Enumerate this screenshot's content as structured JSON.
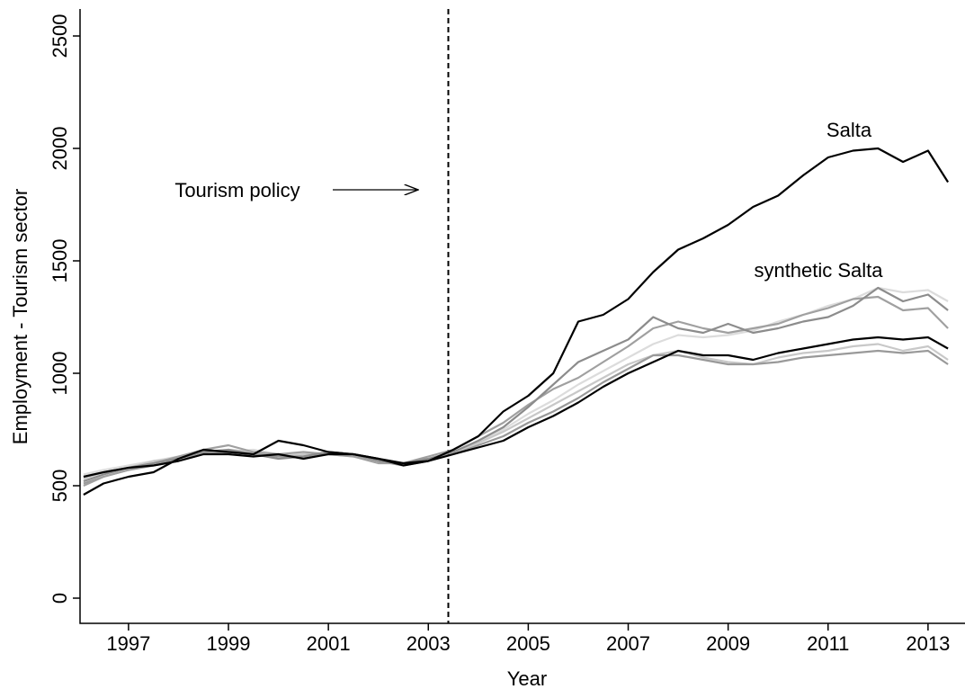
{
  "chart_data": {
    "type": "line",
    "xlabel": "Year",
    "ylabel": "Employment - Tourism sector",
    "annotations": [
      "Salta",
      "synthetic Salta",
      "Tourism policy"
    ],
    "policy_x": 2003.4,
    "x": [
      1996.1,
      1996.5,
      1997,
      1997.5,
      1998,
      1998.5,
      1999,
      1999.5,
      2000,
      2000.5,
      2001,
      2001.5,
      2002,
      2002.5,
      2003,
      2003.5,
      2004,
      2004.5,
      2005,
      2005.5,
      2006,
      2006.5,
      2007,
      2007.5,
      2008,
      2008.5,
      2009,
      2009.5,
      2010,
      2010.5,
      2011,
      2011.5,
      2012,
      2012.5,
      2013,
      2013.4
    ],
    "series": [
      {
        "color": "#dcdcdc",
        "values": [
          550,
          570,
          590,
          610,
          630,
          650,
          650,
          660,
          640,
          630,
          640,
          640,
          620,
          600,
          620,
          650,
          690,
          750,
          820,
          880,
          950,
          1010,
          1070,
          1130,
          1170,
          1160,
          1170,
          1190,
          1230,
          1260,
          1300,
          1330,
          1380,
          1360,
          1370,
          1320
        ]
      },
      {
        "color": "#c8c8c8",
        "values": [
          530,
          560,
          580,
          610,
          620,
          650,
          660,
          650,
          630,
          640,
          640,
          630,
          610,
          600,
          620,
          650,
          690,
          740,
          800,
          860,
          920,
          980,
          1040,
          1080,
          1100,
          1070,
          1050,
          1040,
          1070,
          1090,
          1100,
          1120,
          1130,
          1100,
          1120,
          1060
        ]
      },
      {
        "color": "#999999",
        "values": [
          510,
          540,
          570,
          590,
          610,
          640,
          650,
          640,
          630,
          630,
          650,
          640,
          610,
          590,
          610,
          640,
          680,
          720,
          780,
          830,
          890,
          960,
          1020,
          1080,
          1080,
          1060,
          1040,
          1040,
          1050,
          1070,
          1080,
          1090,
          1100,
          1090,
          1100,
          1040
        ]
      },
      {
        "color": "#a0a0a0",
        "values": [
          500,
          540,
          570,
          600,
          630,
          660,
          680,
          650,
          640,
          650,
          640,
          630,
          600,
          600,
          630,
          660,
          720,
          780,
          860,
          930,
          980,
          1050,
          1120,
          1200,
          1230,
          1200,
          1180,
          1200,
          1220,
          1260,
          1290,
          1330,
          1340,
          1280,
          1290,
          1200
        ]
      },
      {
        "color": "#8c8c8c",
        "values": [
          520,
          550,
          580,
          600,
          620,
          650,
          660,
          640,
          620,
          630,
          650,
          640,
          610,
          600,
          620,
          650,
          700,
          760,
          850,
          950,
          1050,
          1100,
          1150,
          1250,
          1200,
          1180,
          1220,
          1180,
          1200,
          1230,
          1250,
          1300,
          1380,
          1320,
          1350,
          1280
        ]
      },
      {
        "color": "#000000",
        "values": [
          540,
          560,
          580,
          590,
          610,
          640,
          640,
          630,
          640,
          620,
          640,
          640,
          620,
          590,
          610,
          640,
          670,
          700,
          760,
          810,
          870,
          940,
          1000,
          1050,
          1100,
          1080,
          1080,
          1060,
          1090,
          1110,
          1130,
          1150,
          1160,
          1150,
          1160,
          1110
        ]
      },
      {
        "color": "#000000",
        "values": [
          460,
          510,
          540,
          560,
          620,
          660,
          650,
          640,
          700,
          680,
          650,
          640,
          620,
          600,
          610,
          660,
          720,
          830,
          900,
          1000,
          1230,
          1260,
          1330,
          1450,
          1550,
          1600,
          1660,
          1740,
          1790,
          1880,
          1960,
          1990,
          2000,
          1940,
          1990,
          1850
        ]
      }
    ],
    "xlim": [
      1996.03,
      2013.74
    ],
    "xticks": [
      1997,
      1999,
      2001,
      2003,
      2005,
      2007,
      2009,
      2011,
      2013
    ],
    "ylim": [
      -112,
      2620
    ],
    "yticks": [
      0,
      500,
      1000,
      1500,
      2000,
      2500
    ]
  }
}
